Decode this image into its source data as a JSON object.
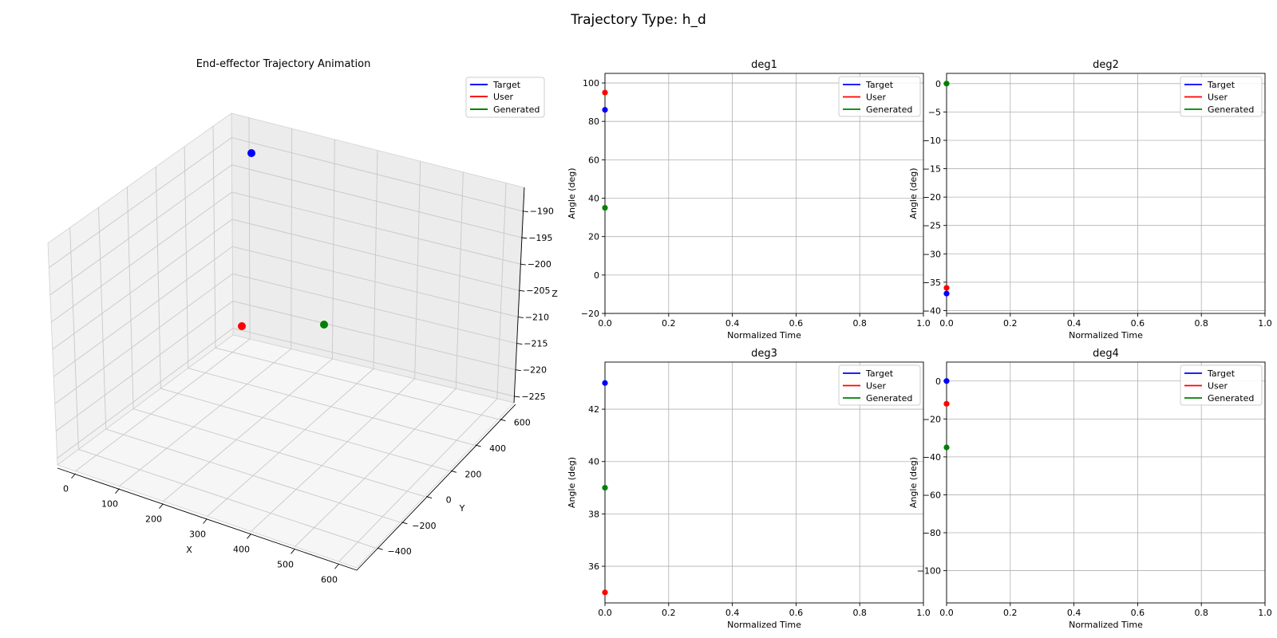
{
  "figure": {
    "title": "Trajectory Type: h_d",
    "colors": {
      "Target": "#0000ff",
      "User": "#ff0000",
      "Generated": "#008000"
    }
  },
  "chart_data": [
    {
      "id": "traj3d",
      "type": "scatter3d",
      "title": "End-effector Trajectory Animation",
      "xlabel": "X",
      "ylabel": "Y",
      "zlabel": "Z",
      "xticks": [
        0,
        100,
        200,
        300,
        400,
        500,
        600
      ],
      "yticks": [
        -400,
        -200,
        0,
        200,
        400,
        600
      ],
      "zticks": [
        -190,
        -195,
        -200,
        -205,
        -210,
        -215,
        -220,
        -225
      ],
      "legend": [
        "Target",
        "User",
        "Generated"
      ],
      "legend_position": "upper-right",
      "series": [
        {
          "name": "Target",
          "color": "#0000ff",
          "x": 80,
          "y": 50,
          "z": -190
        },
        {
          "name": "User",
          "color": "#ff0000",
          "x": 60,
          "y": -160,
          "z": -212
        },
        {
          "name": "Generated",
          "color": "#008000",
          "x": 240,
          "y": -80,
          "z": -213
        }
      ]
    },
    {
      "id": "deg1",
      "type": "line",
      "title": "deg1",
      "xlabel": "Normalized Time",
      "ylabel": "Angle (deg)",
      "xlim": [
        0,
        1
      ],
      "ylim": [
        -20,
        105
      ],
      "xticks": [
        0,
        0.2,
        0.4,
        0.6,
        0.8,
        1
      ],
      "xtick_labels": [
        "0.0",
        "0.2",
        "0.4",
        "0.6",
        "0.8",
        "1.0"
      ],
      "yticks": [
        -20,
        0,
        20,
        40,
        60,
        80,
        100
      ],
      "ytick_labels": [
        "−20",
        "0",
        "20",
        "40",
        "60",
        "80",
        "100"
      ],
      "grid": true,
      "legend_position": "upper-right",
      "series": [
        {
          "name": "Target",
          "color": "#0000ff",
          "x": [
            0
          ],
          "y": [
            86
          ]
        },
        {
          "name": "User",
          "color": "#ff0000",
          "x": [
            0
          ],
          "y": [
            95
          ]
        },
        {
          "name": "Generated",
          "color": "#008000",
          "x": [
            0
          ],
          "y": [
            35
          ]
        }
      ]
    },
    {
      "id": "deg2",
      "type": "line",
      "title": "deg2",
      "xlabel": "Normalized Time",
      "ylabel": "Angle (deg)",
      "xlim": [
        0,
        1
      ],
      "ylim": [
        -40.5,
        1.8
      ],
      "xticks": [
        0,
        0.2,
        0.4,
        0.6,
        0.8,
        1
      ],
      "xtick_labels": [
        "0.0",
        "0.2",
        "0.4",
        "0.6",
        "0.8",
        "1.0"
      ],
      "yticks": [
        -40,
        -35,
        -30,
        -25,
        -20,
        -15,
        -10,
        -5,
        0
      ],
      "ytick_labels": [
        "−40",
        "−35",
        "−30",
        "−25",
        "−20",
        "−15",
        "−10",
        "−5",
        "0"
      ],
      "grid": true,
      "legend_position": "upper-right",
      "series": [
        {
          "name": "Target",
          "color": "#0000ff",
          "x": [
            0
          ],
          "y": [
            -37
          ]
        },
        {
          "name": "User",
          "color": "#ff0000",
          "x": [
            0
          ],
          "y": [
            -36
          ]
        },
        {
          "name": "Generated",
          "color": "#008000",
          "x": [
            0
          ],
          "y": [
            0
          ]
        }
      ]
    },
    {
      "id": "deg3",
      "type": "line",
      "title": "deg3",
      "xlabel": "Normalized Time",
      "ylabel": "Angle (deg)",
      "xlim": [
        0,
        1
      ],
      "ylim": [
        34.6,
        43.8
      ],
      "xticks": [
        0,
        0.2,
        0.4,
        0.6,
        0.8,
        1
      ],
      "xtick_labels": [
        "0.0",
        "0.2",
        "0.4",
        "0.6",
        "0.8",
        "1.0"
      ],
      "yticks": [
        36,
        38,
        40,
        42
      ],
      "ytick_labels": [
        "36",
        "38",
        "40",
        "42"
      ],
      "grid": true,
      "legend_position": "upper-right",
      "series": [
        {
          "name": "Target",
          "color": "#0000ff",
          "x": [
            0
          ],
          "y": [
            43
          ]
        },
        {
          "name": "User",
          "color": "#ff0000",
          "x": [
            0
          ],
          "y": [
            35
          ]
        },
        {
          "name": "Generated",
          "color": "#008000",
          "x": [
            0
          ],
          "y": [
            39
          ]
        }
      ]
    },
    {
      "id": "deg4",
      "type": "line",
      "title": "deg4",
      "xlabel": "Normalized Time",
      "ylabel": "Angle (deg)",
      "xlim": [
        0,
        1
      ],
      "ylim": [
        -117,
        10
      ],
      "xticks": [
        0,
        0.2,
        0.4,
        0.6,
        0.8,
        1
      ],
      "xtick_labels": [
        "0.0",
        "0.2",
        "0.4",
        "0.6",
        "0.8",
        "1.0"
      ],
      "yticks": [
        -100,
        -80,
        -60,
        -40,
        -20,
        0
      ],
      "ytick_labels": [
        "−100",
        "−80",
        "−60",
        "−40",
        "−20",
        "0"
      ],
      "grid": true,
      "legend_position": "upper-right",
      "series": [
        {
          "name": "Target",
          "color": "#0000ff",
          "x": [
            0
          ],
          "y": [
            0
          ]
        },
        {
          "name": "User",
          "color": "#ff0000",
          "x": [
            0
          ],
          "y": [
            -12
          ]
        },
        {
          "name": "Generated",
          "color": "#008000",
          "x": [
            0
          ],
          "y": [
            -35
          ]
        }
      ]
    }
  ]
}
